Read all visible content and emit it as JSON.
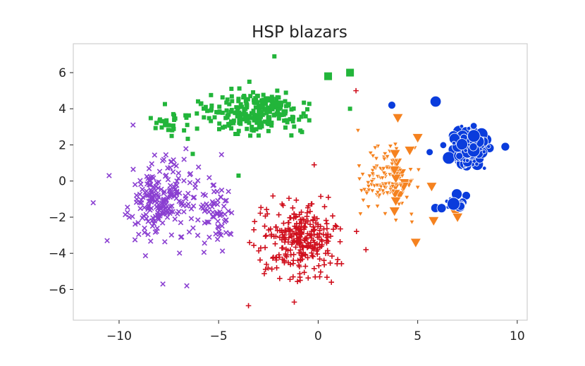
{
  "chart_data": {
    "type": "scatter",
    "title": "HSP blazars",
    "xlabel": "",
    "ylabel": "",
    "xlim": [
      -12.3,
      10.5
    ],
    "ylim": [
      -7.7,
      7.6
    ],
    "xticks": [
      -10,
      -5,
      0,
      5,
      10
    ],
    "xtick_labels": [
      "−10",
      "−5",
      "0",
      "5",
      "10"
    ],
    "yticks": [
      -6,
      -4,
      -2,
      0,
      2,
      4,
      6
    ],
    "ytick_labels": [
      "−6",
      "−4",
      "−2",
      "0",
      "2",
      "4",
      "6"
    ],
    "grid": false,
    "legend": "none",
    "series": [
      {
        "marker": "x",
        "color": "#8a3fd1",
        "clusters": [
          {
            "cx": -7.9,
            "cy": -1.0,
            "sx": 1.35,
            "sy": 1.9,
            "n": 210
          },
          {
            "cx": -5.2,
            "cy": -1.6,
            "sx": 0.9,
            "sy": 1.5,
            "n": 70
          }
        ],
        "points": [
          [
            -10.5,
            0.3
          ],
          [
            -11.3,
            -1.2
          ],
          [
            -9.3,
            3.1
          ],
          [
            -7.8,
            -5.7
          ],
          [
            -6.6,
            -5.8
          ],
          [
            -10.6,
            -3.3
          ]
        ]
      },
      {
        "marker": "square",
        "color": "#22b53a",
        "clusters": [
          {
            "cx": -3.2,
            "cy": 3.9,
            "sx": 2.2,
            "sy": 1.0,
            "n": 250
          },
          {
            "cx": -7.4,
            "cy": 3.2,
            "sx": 0.9,
            "sy": 0.6,
            "n": 30
          }
        ],
        "points": [
          [
            -2.2,
            6.9
          ],
          [
            0.5,
            5.8
          ],
          [
            1.6,
            6.0
          ],
          [
            -4.0,
            0.3
          ],
          [
            -6.3,
            1.5
          ],
          [
            1.6,
            4.0
          ]
        ]
      },
      {
        "marker": "plus",
        "color": "#d0101e",
        "clusters": [
          {
            "cx": -0.9,
            "cy": -3.2,
            "sx": 1.8,
            "sy": 1.7,
            "n": 280
          }
        ],
        "points": [
          [
            -3.5,
            -6.9
          ],
          [
            -1.2,
            -6.7
          ],
          [
            2.4,
            -3.8
          ],
          [
            -0.2,
            0.9
          ],
          [
            1.9,
            5.0
          ]
        ]
      },
      {
        "marker": "triangle-down",
        "color": "#f5821f",
        "clusters": [
          {
            "cx": 3.5,
            "cy": 0.1,
            "sx": 1.1,
            "sy": 1.6,
            "n": 130
          }
        ],
        "points": [
          [
            4.0,
            3.5
          ],
          [
            5.0,
            2.4
          ],
          [
            4.6,
            1.7
          ],
          [
            4.9,
            -3.4
          ],
          [
            2.0,
            2.8
          ],
          [
            3.9,
            -1.1
          ],
          [
            5.7,
            -0.3
          ],
          [
            5.8,
            -2.2
          ],
          [
            6.9,
            -1.8
          ],
          [
            7.0,
            -2.0
          ]
        ]
      },
      {
        "marker": "circle",
        "color": "#0a3cdc",
        "clusters": [
          {
            "cx": 7.6,
            "cy": 1.9,
            "sx": 0.85,
            "sy": 0.9,
            "n": 160
          },
          {
            "cx": 7.0,
            "cy": -1.2,
            "sx": 0.6,
            "sy": 0.35,
            "n": 18
          }
        ],
        "points": [
          [
            5.9,
            4.4
          ],
          [
            3.7,
            4.2
          ],
          [
            5.6,
            1.6
          ],
          [
            6.2,
            -1.5
          ],
          [
            9.4,
            1.9
          ]
        ]
      }
    ]
  }
}
